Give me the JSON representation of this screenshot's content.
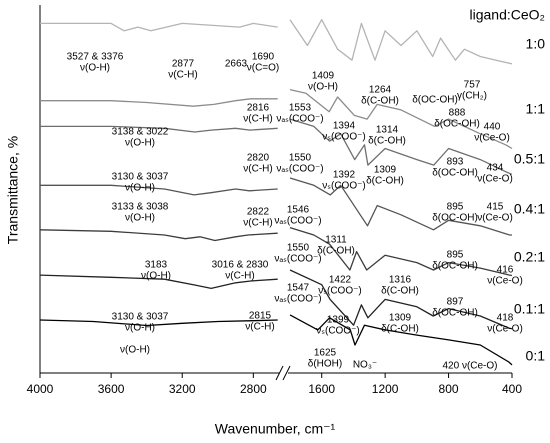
{
  "chart_data": {
    "type": "line",
    "xlabel": "Wavenumber, cm⁻¹",
    "ylabel": "Transmittance, %",
    "legend_title": "ligand:CeO₂",
    "xlim": [
      4000,
      400
    ],
    "xbreak": [
      2650,
      1800
    ],
    "xticks": [
      4000,
      3600,
      3200,
      2800,
      1600,
      1200,
      800,
      400
    ],
    "ylim": [
      0,
      100
    ],
    "series": [
      {
        "name": "1:0",
        "color": "#b4b4b4",
        "x": [
          4000,
          3600,
          3527,
          3450,
          3376,
          3200,
          2877,
          2800,
          2663,
          null,
          1800,
          1690,
          1600,
          1500,
          1409,
          1350,
          1264,
          1200,
          1100,
          1000,
          900,
          850,
          757,
          700,
          600,
          500,
          400
        ],
        "values": [
          95,
          95,
          93,
          94,
          93,
          95,
          94,
          95,
          94,
          null,
          96,
          89,
          96,
          88,
          85,
          95,
          85,
          93,
          89,
          93,
          86,
          91,
          85,
          88,
          86,
          85,
          84
        ]
      },
      {
        "name": "1:1",
        "color": "#8c8c8c",
        "x": [
          4000,
          3600,
          3400,
          3138,
          3022,
          2900,
          2816,
          2663,
          null,
          1800,
          1700,
          1553,
          1500,
          1394,
          1314,
          1250,
          1100,
          888,
          800,
          600,
          440,
          400
        ],
        "values": [
          74,
          74,
          73.5,
          72.5,
          73,
          74,
          74.5,
          74.5,
          null,
          77,
          76,
          71,
          75,
          70,
          69,
          73,
          71.5,
          67,
          69,
          65,
          62,
          61
        ]
      },
      {
        "name": "0.5:1",
        "color": "#6e6e6e",
        "x": [
          4000,
          3600,
          3300,
          3130,
          3037,
          2900,
          2820,
          2663,
          null,
          1800,
          1650,
          1550,
          1480,
          1392,
          1330,
          1309,
          1200,
          1000,
          893,
          800,
          600,
          434,
          400
        ],
        "values": [
          67,
          67,
          66.5,
          65.5,
          66,
          66.5,
          66,
          66.5,
          null,
          69,
          67,
          63,
          65,
          58,
          62,
          56.5,
          61,
          58,
          56.5,
          61,
          58,
          54.6,
          54
        ]
      },
      {
        "name": "0.4:1",
        "color": "#555555",
        "x": [
          4000,
          3600,
          3300,
          3133,
          3038,
          2900,
          2822,
          2663,
          null,
          1800,
          1650,
          1546,
          1480,
          1311,
          1250,
          1100,
          895,
          800,
          600,
          415,
          400
        ],
        "values": [
          51,
          51,
          50,
          48.4,
          49,
          50,
          49.5,
          50,
          null,
          53,
          51,
          48.4,
          51,
          40,
          45.5,
          43,
          38.9,
          41.5,
          40,
          37.5,
          37.5
        ]
      },
      {
        "name": "0.2:1",
        "color": "#3d3d3d",
        "x": [
          4000,
          3600,
          3300,
          3183,
          3100,
          3016,
          2900,
          2830,
          2663,
          null,
          1800,
          1650,
          1550,
          1422,
          1380,
          1316,
          1200,
          1000,
          895,
          800,
          600,
          416,
          400
        ],
        "values": [
          38.9,
          38.5,
          37.5,
          36.5,
          37,
          36,
          37,
          37.5,
          38,
          null,
          39.5,
          37.5,
          35,
          28,
          33,
          28,
          32,
          30,
          28,
          30,
          28.5,
          26.6,
          26.5
        ]
      },
      {
        "name": "0.1:1",
        "color": "#222222",
        "x": [
          4000,
          3600,
          3300,
          3130,
          3037,
          2900,
          2815,
          2663,
          null,
          1800,
          1600,
          1547,
          1399,
          1350,
          1309,
          1200,
          1000,
          897,
          800,
          600,
          418,
          400
        ],
        "values": [
          26.6,
          26,
          25.5,
          23.9,
          23,
          24.5,
          25,
          25.5,
          null,
          28,
          24,
          20,
          13,
          18.5,
          15,
          20,
          18,
          15.5,
          17.5,
          15.5,
          12.2,
          12
        ]
      },
      {
        "name": "0:1",
        "color": "#000000",
        "x": [
          4000,
          3700,
          3400,
          3200,
          3000,
          2800,
          2663,
          null,
          1800,
          1625,
          1550,
          1420,
          1390,
          1330,
          1200,
          1000,
          800,
          600,
          420,
          400
        ],
        "values": [
          14.4,
          14,
          12.9,
          13.5,
          14,
          14.2,
          14.4,
          null,
          15.8,
          11.7,
          15,
          11.7,
          7.6,
          13,
          11.7,
          10.3,
          9,
          7.6,
          3,
          2.2
        ]
      }
    ],
    "annotations": [
      {
        "lines": [
          "3527 & 3376",
          "ν(O-H)"
        ]
      },
      {
        "lines": [
          "2877",
          "ν(C-H)"
        ]
      },
      {
        "lines": [
          "2663"
        ]
      },
      {
        "lines": [
          "1690",
          "ν(C=O)"
        ]
      },
      {
        "lines": [
          "1409",
          "ν(O-H)"
        ]
      },
      {
        "lines": [
          "1264",
          "δ(C-OH)"
        ]
      },
      {
        "lines": [
          "δ(OC-OH)"
        ]
      },
      {
        "lines": [
          "757",
          "γ(CH₂)"
        ]
      },
      {
        "lines": [
          "2816",
          "ν(C-H)"
        ]
      },
      {
        "lines": [
          "3138 & 3022",
          "ν(O-H)"
        ]
      },
      {
        "lines": [
          "1553",
          "νₐₛ(COO⁻)"
        ]
      },
      {
        "lines": [
          "1394",
          "νₛ(COO⁻)"
        ]
      },
      {
        "lines": [
          "1314",
          "δ(C-OH)"
        ]
      },
      {
        "lines": [
          "888",
          "δ(OC-OH)"
        ]
      },
      {
        "lines": [
          "440",
          "ν(Ce-O)"
        ]
      },
      {
        "lines": [
          "2820",
          "ν(C-H)"
        ]
      },
      {
        "lines": [
          "3130 & 3037",
          "ν(O-H)"
        ]
      },
      {
        "lines": [
          "1550",
          "νₐₛ(COO⁻)"
        ]
      },
      {
        "lines": [
          "1392",
          "νₛ(COO⁻)"
        ]
      },
      {
        "lines": [
          "1309",
          "δ(C-OH)"
        ]
      },
      {
        "lines": [
          "893",
          "δ(OC-OH)"
        ]
      },
      {
        "lines": [
          "434",
          "ν(Ce-O)"
        ]
      },
      {
        "lines": [
          "2822",
          "ν(C-H)"
        ]
      },
      {
        "lines": [
          "3133 & 3038",
          "ν(O-H)"
        ]
      },
      {
        "lines": [
          "1546",
          "νₐₛ(COO⁻)"
        ]
      },
      {
        "lines": [
          "1311",
          "δ(C-OH)"
        ]
      },
      {
        "lines": [
          "895",
          "δ(OC-OH)"
        ]
      },
      {
        "lines": [
          "415",
          "ν(Ce-O)"
        ]
      },
      {
        "lines": [
          "3183",
          "ν(O-H)"
        ]
      },
      {
        "lines": [
          "3016 & 2830",
          "ν(C-H)"
        ]
      },
      {
        "lines": [
          "1550",
          "νₐₛ(COO⁻)"
        ]
      },
      {
        "lines": [
          "1422",
          "νₛ(COO⁻)"
        ]
      },
      {
        "lines": [
          "1316",
          "δ(C-OH)"
        ]
      },
      {
        "lines": [
          "895",
          "δ(OC-OH)"
        ]
      },
      {
        "lines": [
          "416",
          "ν(Ce-O)"
        ]
      },
      {
        "lines": [
          "2815",
          "ν(C-H)"
        ]
      },
      {
        "lines": [
          "3130 & 3037",
          "ν(O-H)"
        ]
      },
      {
        "lines": [
          "1547",
          "νₐₛ(COO⁻)"
        ]
      },
      {
        "lines": [
          "1399",
          "νₛ(COO⁻)"
        ]
      },
      {
        "lines": [
          "1309",
          "δ(C-OH)"
        ]
      },
      {
        "lines": [
          "897",
          "δ(OC-OH)"
        ]
      },
      {
        "lines": [
          "418",
          "ν(Ce-O)"
        ]
      },
      {
        "lines": [
          "ν(O-H)"
        ]
      },
      {
        "lines": [
          "1625",
          "δ(HOH)"
        ]
      },
      {
        "lines": [
          "NO₃⁻"
        ]
      },
      {
        "lines": [
          "420 ν(Ce-O)"
        ]
      }
    ]
  }
}
